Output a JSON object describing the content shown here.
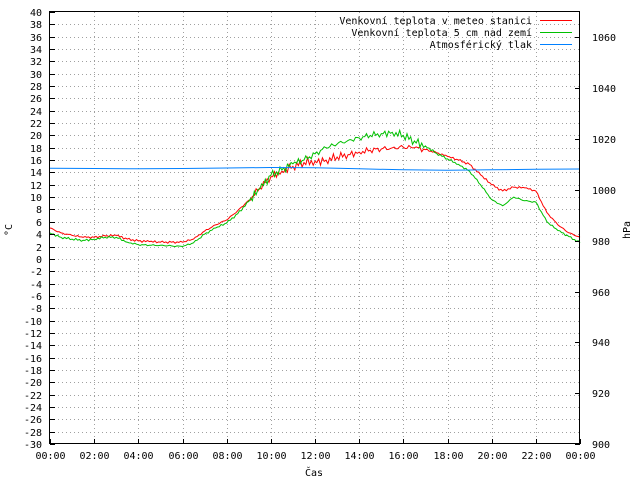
{
  "chart_data": {
    "type": "line",
    "xlabel": "Čas",
    "ylabel": "°C",
    "y2label": "hPa",
    "x_range": [
      "00:00",
      "24:00"
    ],
    "x_ticks": [
      "00:00",
      "02:00",
      "04:00",
      "06:00",
      "08:00",
      "10:00",
      "12:00",
      "14:00",
      "16:00",
      "18:00",
      "20:00",
      "22:00",
      "00:00"
    ],
    "ylim": [
      -30,
      40
    ],
    "y_ticks": [
      -30,
      -28,
      -26,
      -24,
      -22,
      -20,
      -18,
      -16,
      -14,
      -12,
      -10,
      -8,
      -6,
      -4,
      -2,
      0,
      2,
      4,
      6,
      8,
      10,
      12,
      14,
      16,
      18,
      20,
      22,
      24,
      26,
      28,
      30,
      32,
      34,
      36,
      38,
      40
    ],
    "y2lim": [
      900,
      1070
    ],
    "y2_ticks": [
      900,
      920,
      940,
      960,
      980,
      1000,
      1020,
      1040,
      1060
    ],
    "grid": true,
    "legend_position": "top-right",
    "series": [
      {
        "name": "Venkovní teplota v meteo stanici",
        "color": "#ff0000",
        "axis": "left",
        "x": [
          "00:00",
          "00:30",
          "01:00",
          "01:30",
          "02:00",
          "02:30",
          "03:00",
          "03:30",
          "04:00",
          "04:30",
          "05:00",
          "05:30",
          "06:00",
          "06:30",
          "07:00",
          "07:30",
          "08:00",
          "08:30",
          "09:00",
          "09:30",
          "10:00",
          "10:30",
          "11:00",
          "11:30",
          "12:00",
          "12:30",
          "13:00",
          "13:30",
          "14:00",
          "14:30",
          "15:00",
          "15:30",
          "16:00",
          "16:30",
          "17:00",
          "17:30",
          "18:00",
          "18:30",
          "19:00",
          "19:30",
          "20:00",
          "20:30",
          "21:00",
          "21:30",
          "22:00",
          "22:30",
          "23:00",
          "23:30",
          "24:00"
        ],
        "values": [
          5.0,
          4.2,
          3.8,
          3.5,
          3.5,
          3.7,
          3.8,
          3.2,
          2.9,
          2.8,
          2.7,
          2.7,
          2.7,
          3.2,
          4.5,
          5.5,
          6.3,
          7.8,
          9.5,
          11.5,
          13.3,
          14.2,
          15.0,
          15.6,
          15.8,
          16.0,
          16.5,
          16.9,
          17.3,
          17.6,
          17.8,
          18.0,
          18.1,
          18.0,
          17.7,
          17.2,
          16.6,
          16.0,
          15.3,
          13.6,
          12.0,
          11.0,
          11.6,
          11.5,
          11.0,
          7.5,
          5.5,
          4.2,
          3.5
        ]
      },
      {
        "name": "Venkovní teplota 5 cm nad zemí",
        "color": "#00c000",
        "axis": "left",
        "x": [
          "00:00",
          "00:30",
          "01:00",
          "01:30",
          "02:00",
          "02:30",
          "03:00",
          "03:30",
          "04:00",
          "04:30",
          "05:00",
          "05:30",
          "06:00",
          "06:30",
          "07:00",
          "07:30",
          "08:00",
          "08:30",
          "09:00",
          "09:30",
          "10:00",
          "10:30",
          "11:00",
          "11:30",
          "12:00",
          "12:30",
          "13:00",
          "13:30",
          "14:00",
          "14:30",
          "15:00",
          "15:30",
          "16:00",
          "16:30",
          "17:00",
          "17:30",
          "18:00",
          "18:30",
          "19:00",
          "19:30",
          "20:00",
          "20:30",
          "21:00",
          "21:30",
          "22:00",
          "22:30",
          "23:00",
          "23:30",
          "24:00"
        ],
        "values": [
          4.2,
          3.5,
          3.2,
          3.0,
          3.2,
          3.5,
          3.5,
          2.7,
          2.3,
          2.2,
          2.2,
          2.1,
          2.0,
          2.6,
          4.0,
          5.0,
          5.8,
          7.3,
          9.3,
          11.3,
          13.5,
          14.4,
          15.4,
          16.0,
          17.0,
          18.0,
          18.6,
          19.2,
          19.6,
          20.0,
          20.3,
          20.5,
          20.0,
          19.1,
          18.3,
          17.1,
          16.2,
          15.3,
          14.2,
          12.0,
          9.6,
          8.6,
          10.0,
          9.4,
          9.2,
          6.0,
          4.6,
          3.6,
          2.6
        ]
      },
      {
        "name": "Atmosférický tlak",
        "color": "#0080ff",
        "axis": "right",
        "x": [
          "00:00",
          "02:00",
          "04:00",
          "06:00",
          "08:00",
          "10:00",
          "12:00",
          "14:00",
          "16:00",
          "18:00",
          "20:00",
          "22:00",
          "24:00"
        ],
        "values": [
          1008.5,
          1008.4,
          1008.3,
          1008.4,
          1008.6,
          1008.8,
          1008.7,
          1008.3,
          1007.9,
          1007.7,
          1007.9,
          1008.1,
          1008.2
        ]
      }
    ]
  }
}
